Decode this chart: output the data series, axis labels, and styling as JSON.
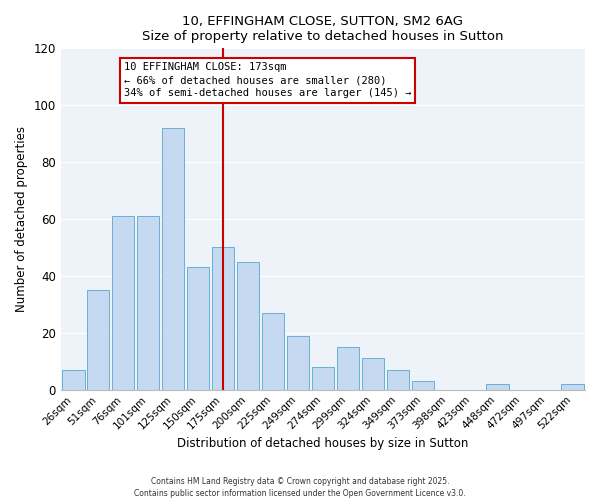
{
  "title": "10, EFFINGHAM CLOSE, SUTTON, SM2 6AG",
  "subtitle": "Size of property relative to detached houses in Sutton",
  "xlabel": "Distribution of detached houses by size in Sutton",
  "ylabel": "Number of detached properties",
  "bar_labels": [
    "26sqm",
    "51sqm",
    "76sqm",
    "101sqm",
    "125sqm",
    "150sqm",
    "175sqm",
    "200sqm",
    "225sqm",
    "249sqm",
    "274sqm",
    "299sqm",
    "324sqm",
    "349sqm",
    "373sqm",
    "398sqm",
    "423sqm",
    "448sqm",
    "472sqm",
    "497sqm",
    "522sqm"
  ],
  "bar_values": [
    7,
    35,
    61,
    61,
    92,
    43,
    50,
    45,
    27,
    19,
    8,
    15,
    11,
    7,
    3,
    0,
    0,
    2,
    0,
    0,
    2
  ],
  "bar_color": "#c5d9f0",
  "bar_edge_color": "#6baed6",
  "reference_line_index": 6,
  "reference_line_color": "#cc0000",
  "annotation_title": "10 EFFINGHAM CLOSE: 173sqm",
  "annotation_line1": "← 66% of detached houses are smaller (280)",
  "annotation_line2": "34% of semi-detached houses are larger (145) →",
  "ylim": [
    0,
    120
  ],
  "yticks": [
    0,
    20,
    40,
    60,
    80,
    100,
    120
  ],
  "background_color": "#eef2f9",
  "grid_color": "#ffffff",
  "footer1": "Contains HM Land Registry data © Crown copyright and database right 2025.",
  "footer2": "Contains public sector information licensed under the Open Government Licence v3.0."
}
